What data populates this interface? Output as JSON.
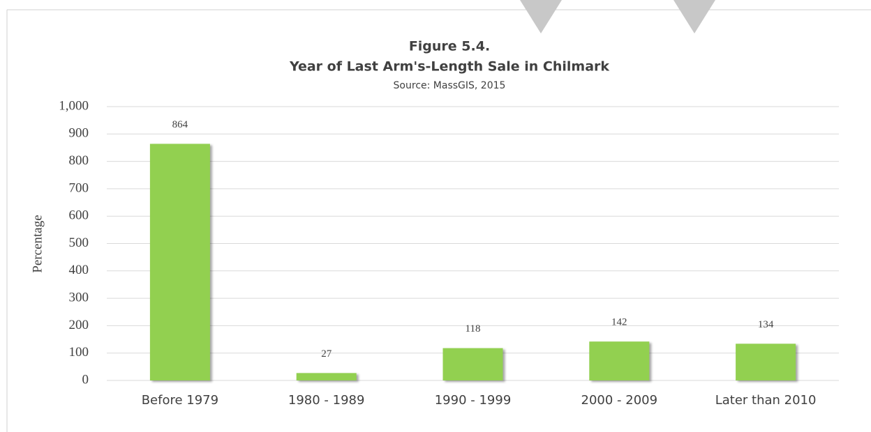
{
  "chart_data": {
    "type": "bar",
    "title": "Figure 5.4.",
    "subtitle": "Year of Last Arm's-Length Sale in Chilmark",
    "source": "Source: MassGIS, 2015",
    "y_label": "Percentage",
    "categories": [
      "Before 1979",
      "1980 - 1989",
      "1990 - 1999",
      "2000 - 2009",
      "Later than 2010"
    ],
    "values": [
      864,
      27,
      118,
      142,
      134
    ],
    "color": "#92d050",
    "ylim": [
      0,
      1000
    ],
    "yticks": [
      0,
      100,
      200,
      300,
      400,
      500,
      600,
      700,
      800,
      900,
      {
        "value": 1000,
        "label": "1,000"
      }
    ],
    "grid": true
  }
}
